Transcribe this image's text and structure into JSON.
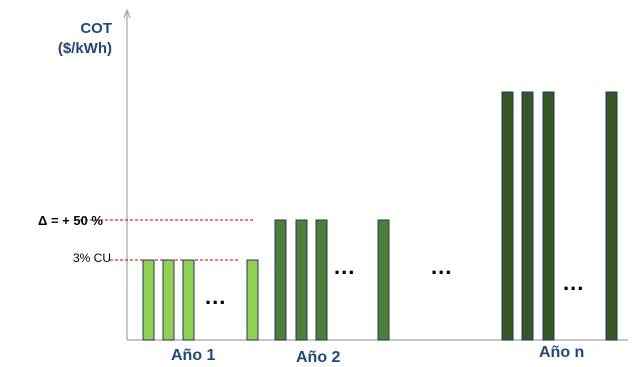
{
  "chart_data": {
    "type": "bar",
    "ylabel_line1": "COT",
    "ylabel_line2": "($/kWh)",
    "reference_lines": [
      {
        "label": "Δ = + 50 %",
        "value": 1.5,
        "color": "#cc0000"
      },
      {
        "label": "3% CU",
        "value": 1.0,
        "color": "#cc0000"
      }
    ],
    "groups": [
      {
        "name": "Año 1",
        "value": 1.0,
        "color": "#92d050",
        "bars_before_gap": 3,
        "bars_after_gap": 1,
        "gap_label": "..."
      },
      {
        "name": "Año 2",
        "value": 1.5,
        "color": "#4f7f36",
        "bars_before_gap": 3,
        "bars_after_gap": 1,
        "gap_label": "..."
      },
      {
        "name": "Año n",
        "value": 3.1,
        "color": "#375623",
        "bars_before_gap": 3,
        "bars_after_gap": 1,
        "gap_label": "..."
      }
    ],
    "between_groups_label": "...",
    "ylim": [
      0,
      3.5
    ],
    "grid": false
  }
}
